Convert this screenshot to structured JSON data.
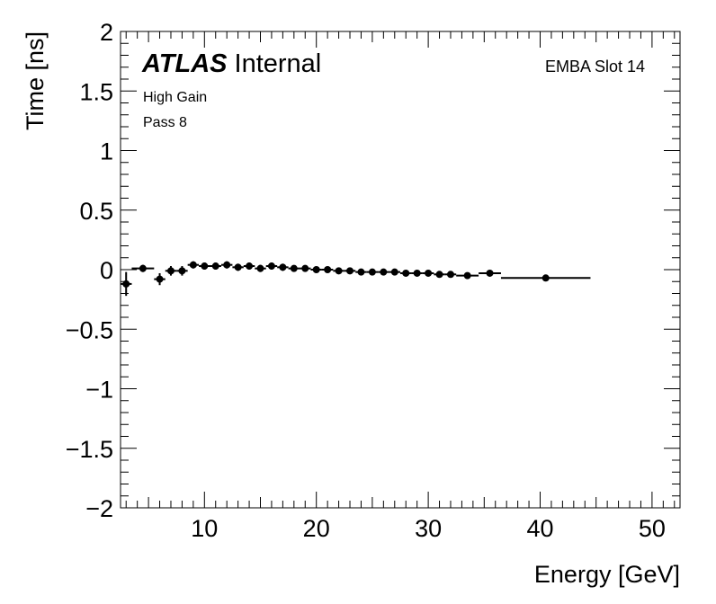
{
  "chart_data": {
    "type": "scatter",
    "xlabel": "Energy [GeV]",
    "ylabel": "Time [ns]",
    "xlim": [
      2.5,
      52.5
    ],
    "ylim": [
      -2,
      2
    ],
    "x_ticks": [
      10,
      20,
      30,
      40,
      50
    ],
    "x_tick_labels": [
      "10",
      "20",
      "30",
      "40",
      "50"
    ],
    "y_ticks": [
      -2,
      -1.5,
      -1,
      -0.5,
      0,
      0.5,
      1,
      1.5,
      2
    ],
    "y_tick_labels": [
      "−2",
      "−1.5",
      "−1",
      "−0.5",
      "0",
      "0.5",
      "1",
      "1.5",
      "2"
    ],
    "atlas_label": "ATLAS",
    "atlas_sublabel": "Internal",
    "annotation_gain": "High Gain",
    "annotation_pass": "Pass 8",
    "annotation_slot": "EMBA Slot 14",
    "series": [
      {
        "name": "EMBA Slot 14",
        "x": [
          3.0,
          4.5,
          6.0,
          7.0,
          8.0,
          9.0,
          10.0,
          11.0,
          12.0,
          13.0,
          14.0,
          15.0,
          16.0,
          17.0,
          18.0,
          19.0,
          20.0,
          21.0,
          22.0,
          23.0,
          24.0,
          25.0,
          26.0,
          27.0,
          28.0,
          29.0,
          30.0,
          31.0,
          32.0,
          33.5,
          35.5,
          40.5
        ],
        "xerr": [
          0.5,
          1.0,
          0.5,
          0.5,
          0.5,
          0.5,
          0.5,
          0.5,
          0.5,
          0.5,
          0.5,
          0.5,
          0.5,
          0.5,
          0.5,
          0.5,
          0.5,
          0.5,
          0.5,
          0.5,
          0.5,
          0.5,
          0.5,
          0.5,
          0.5,
          0.5,
          0.5,
          0.5,
          0.5,
          1.0,
          1.0,
          4.0
        ],
        "y": [
          -0.12,
          0.01,
          -0.08,
          -0.01,
          -0.01,
          0.04,
          0.03,
          0.03,
          0.04,
          0.02,
          0.03,
          0.01,
          0.03,
          0.02,
          0.01,
          0.01,
          0.0,
          0.0,
          -0.01,
          -0.01,
          -0.02,
          -0.02,
          -0.02,
          -0.02,
          -0.03,
          -0.03,
          -0.03,
          -0.04,
          -0.04,
          -0.05,
          -0.03,
          -0.07
        ],
        "yerr": [
          0.1,
          0.03,
          0.05,
          0.04,
          0.04,
          0.03,
          0.03,
          0.03,
          0.03,
          0.03,
          0.03,
          0.03,
          0.03,
          0.03,
          0.02,
          0.02,
          0.02,
          0.02,
          0.02,
          0.02,
          0.02,
          0.02,
          0.02,
          0.02,
          0.02,
          0.02,
          0.02,
          0.02,
          0.02,
          0.01,
          0.01,
          0.01
        ]
      }
    ]
  }
}
